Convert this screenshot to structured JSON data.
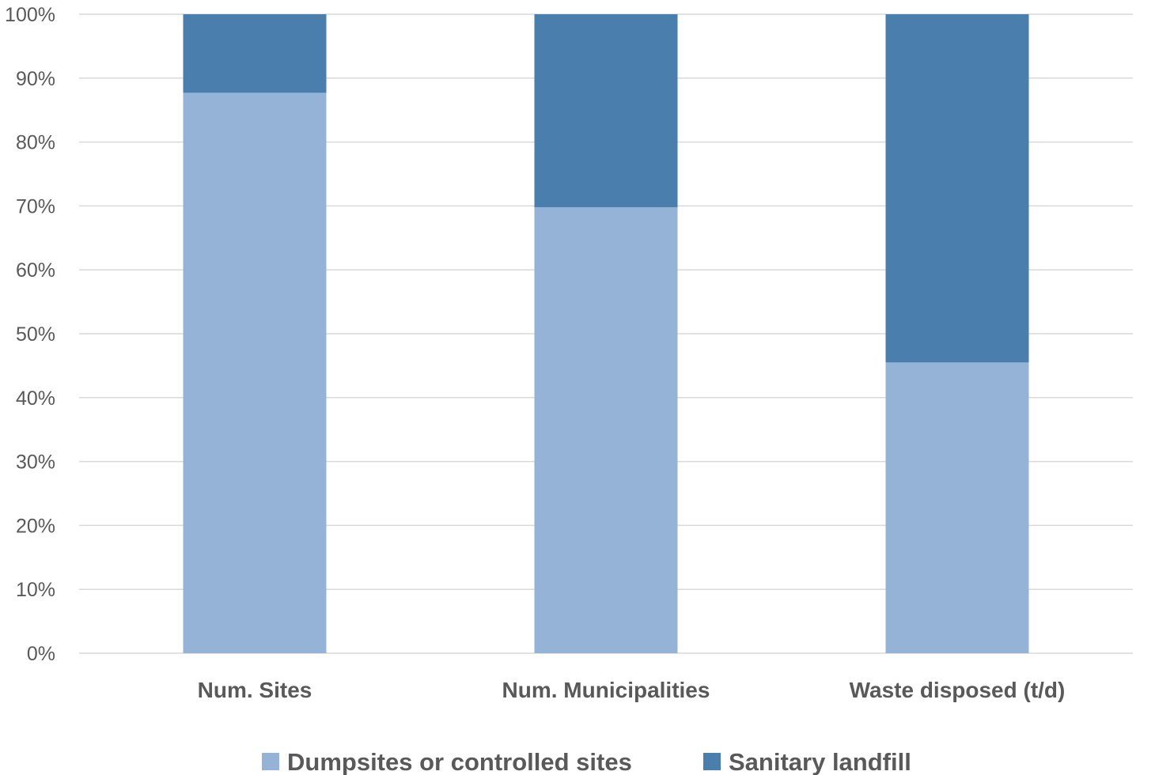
{
  "chart_data": {
    "type": "bar",
    "stacked": true,
    "percent_stacked": true,
    "categories": [
      "Num. Sites",
      "Num. Municipalities",
      "Waste disposed (t/d)"
    ],
    "series": [
      {
        "name": "Dumpsites or controlled sites",
        "values": [
          87.7,
          69.8,
          45.5
        ],
        "color": "#95b3d7"
      },
      {
        "name": "Sanitary landfill",
        "values": [
          12.3,
          30.2,
          54.5
        ],
        "color": "#4a7ead"
      }
    ],
    "yticks": [
      "0%",
      "10%",
      "20%",
      "30%",
      "40%",
      "50%",
      "60%",
      "70%",
      "80%",
      "90%",
      "100%"
    ],
    "ylim": [
      0,
      100
    ],
    "grid": true,
    "legend_position": "bottom"
  }
}
